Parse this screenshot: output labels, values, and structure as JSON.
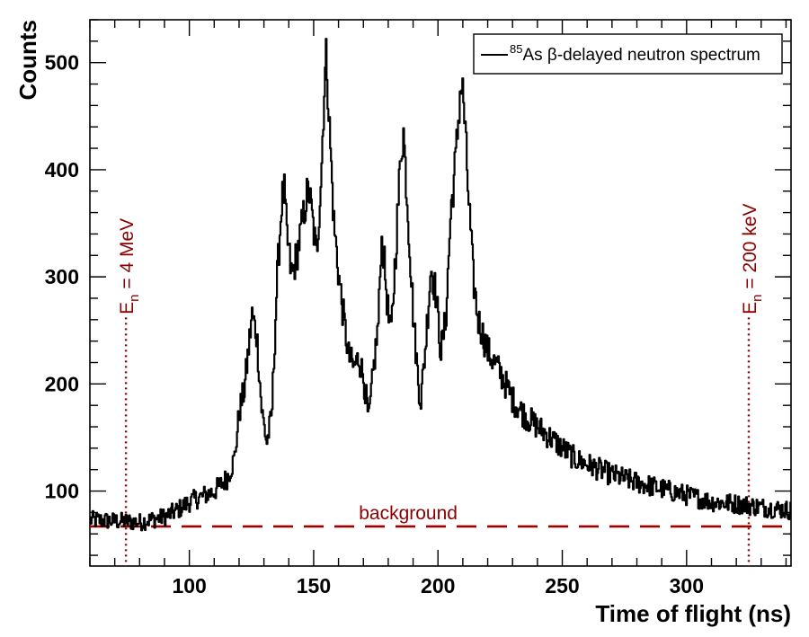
{
  "chart_data": {
    "type": "line",
    "xlabel": "Time of flight (ns)",
    "ylabel": "Counts",
    "xlim": [
      60,
      342
    ],
    "ylim": [
      30,
      540
    ],
    "x_ticks": [
      100,
      150,
      200,
      250,
      300
    ],
    "y_ticks": [
      100,
      200,
      300,
      400,
      500
    ],
    "grid": false,
    "legend": {
      "position": "top-right",
      "entries": [
        {
          "sup": "85",
          "text": "As β-delayed neutron spectrum"
        }
      ]
    },
    "series": [
      {
        "name": "85As β-delayed neutron spectrum",
        "color": "#000000",
        "points": [
          [
            60,
            73
          ],
          [
            70,
            72
          ],
          [
            80,
            71
          ],
          [
            90,
            76
          ],
          [
            95,
            82
          ],
          [
            100,
            90
          ],
          [
            105,
            95
          ],
          [
            110,
            100
          ],
          [
            115,
            112
          ],
          [
            118,
            130
          ],
          [
            120,
            175
          ],
          [
            122,
            195
          ],
          [
            124,
            240
          ],
          [
            125,
            265
          ],
          [
            127,
            245
          ],
          [
            129,
            175
          ],
          [
            131,
            145
          ],
          [
            133,
            170
          ],
          [
            135,
            290
          ],
          [
            137,
            370
          ],
          [
            138,
            380
          ],
          [
            139,
            340
          ],
          [
            141,
            300
          ],
          [
            143,
            320
          ],
          [
            145,
            345
          ],
          [
            147,
            375
          ],
          [
            148,
            380
          ],
          [
            150,
            340
          ],
          [
            151,
            320
          ],
          [
            153,
            400
          ],
          [
            154,
            470
          ],
          [
            155,
            510
          ],
          [
            156,
            450
          ],
          [
            158,
            350
          ],
          [
            160,
            300
          ],
          [
            162,
            260
          ],
          [
            164,
            225
          ],
          [
            166,
            215
          ],
          [
            168,
            225
          ],
          [
            170,
            205
          ],
          [
            172,
            165
          ],
          [
            174,
            215
          ],
          [
            176,
            260
          ],
          [
            177,
            335
          ],
          [
            178,
            320
          ],
          [
            180,
            260
          ],
          [
            181,
            245
          ],
          [
            183,
            330
          ],
          [
            185,
            420
          ],
          [
            186,
            435
          ],
          [
            188,
            350
          ],
          [
            190,
            260
          ],
          [
            192,
            200
          ],
          [
            193,
            185
          ],
          [
            195,
            240
          ],
          [
            197,
            310
          ],
          [
            199,
            285
          ],
          [
            201,
            230
          ],
          [
            203,
            260
          ],
          [
            205,
            360
          ],
          [
            207,
            410
          ],
          [
            209,
            480
          ],
          [
            210,
            470
          ],
          [
            212,
            380
          ],
          [
            214,
            300
          ],
          [
            216,
            260
          ],
          [
            220,
            230
          ],
          [
            225,
            210
          ],
          [
            230,
            185
          ],
          [
            235,
            170
          ],
          [
            240,
            160
          ],
          [
            245,
            150
          ],
          [
            250,
            140
          ],
          [
            255,
            130
          ],
          [
            260,
            125
          ],
          [
            270,
            115
          ],
          [
            280,
            108
          ],
          [
            290,
            102
          ],
          [
            300,
            96
          ],
          [
            310,
            90
          ],
          [
            320,
            88
          ],
          [
            330,
            85
          ],
          [
            342,
            82
          ]
        ]
      }
    ],
    "background": {
      "label": "background",
      "value": 67
    },
    "markers": [
      {
        "x": 74.5,
        "label_sub": "n",
        "label_prefix": "E",
        "label_rest": " = 4 MeV"
      },
      {
        "x": 325,
        "label_sub": "n",
        "label_prefix": "E",
        "label_rest": " = 200 keV"
      }
    ],
    "colors": {
      "axis": "#000000",
      "data": "#000000",
      "annotation": "#8b0000",
      "dashed": "#a00000"
    }
  }
}
